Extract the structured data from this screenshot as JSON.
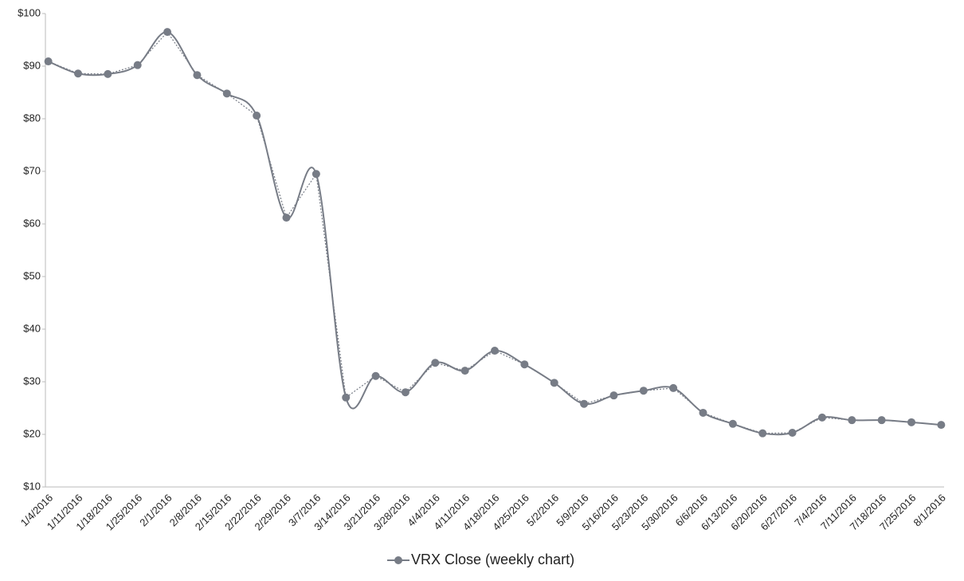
{
  "chart_data": {
    "type": "line",
    "categories": [
      "1/4/2016",
      "1/11/2016",
      "1/18/2016",
      "1/25/2016",
      "2/1/2016",
      "2/8/2016",
      "2/15/2016",
      "2/22/2016",
      "2/29/2016",
      "3/7/2016",
      "3/14/2016",
      "3/21/2016",
      "3/28/2016",
      "4/4/2016",
      "4/11/2016",
      "4/18/2016",
      "4/25/2016",
      "5/2/2016",
      "5/9/2016",
      "5/16/2016",
      "5/23/2016",
      "5/30/2016",
      "6/6/2016",
      "6/13/2016",
      "6/20/2016",
      "6/27/2016",
      "7/4/2016",
      "7/11/2016",
      "7/18/2016",
      "7/25/2016",
      "8/1/2016"
    ],
    "series": [
      {
        "name": "VRX Close (weekly chart)",
        "color": "#777c86",
        "values": [
          90.9,
          88.6,
          88.5,
          90.2,
          96.5,
          88.3,
          84.8,
          80.6,
          61.2,
          69.5,
          27.0,
          31.1,
          28.0,
          33.6,
          32.1,
          35.9,
          33.3,
          29.8,
          25.8,
          27.4,
          28.3,
          28.8,
          24.1,
          22.0,
          20.2,
          20.3,
          23.2,
          22.7,
          22.7,
          22.3,
          21.8
        ]
      }
    ],
    "ylim": [
      10,
      100
    ],
    "yticks": [
      {
        "value": 10,
        "label": "$10"
      },
      {
        "value": 20,
        "label": "$20"
      },
      {
        "value": 30,
        "label": "$30"
      },
      {
        "value": 40,
        "label": "$40"
      },
      {
        "value": 50,
        "label": "$50"
      },
      {
        "value": 60,
        "label": "$60"
      },
      {
        "value": 70,
        "label": "$70"
      },
      {
        "value": 80,
        "label": "$80"
      },
      {
        "value": 90,
        "label": "$90"
      },
      {
        "value": 100,
        "label": "$100"
      }
    ],
    "grid": false,
    "legend": "bottom"
  }
}
